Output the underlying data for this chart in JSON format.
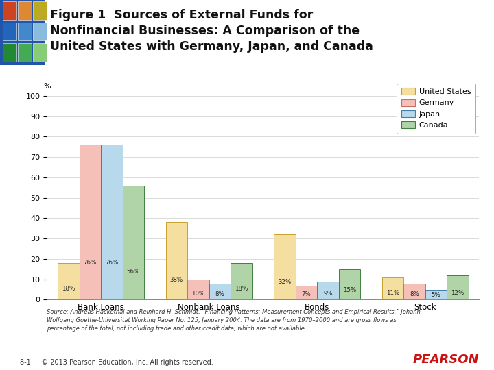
{
  "categories": [
    "Bank Loans",
    "Nonbank Loans",
    "Bonds",
    "Stock"
  ],
  "countries": [
    "United States",
    "Germany",
    "Japan",
    "Canada"
  ],
  "values": {
    "United States": [
      18,
      38,
      32,
      11
    ],
    "Germany": [
      76,
      10,
      7,
      8
    ],
    "Japan": [
      76,
      8,
      9,
      5
    ],
    "Canada": [
      56,
      18,
      15,
      12
    ]
  },
  "colors": {
    "United States": "#F5DFA0",
    "Germany": "#F5C0B8",
    "Japan": "#B8D8EC",
    "Canada": "#B0D4A8"
  },
  "edge_colors": {
    "United States": "#C8A030",
    "Germany": "#C87060",
    "Japan": "#4080A8",
    "Canada": "#408040"
  },
  "bar_width": 0.2,
  "ylim": [
    0,
    108
  ],
  "yticks": [
    0,
    10,
    20,
    30,
    40,
    50,
    60,
    70,
    80,
    90,
    100
  ],
  "ylabel": "%",
  "source_text": "Source: Andreas Hackethal and Reinhard H. Schmidt, “Financing Patterns: Measurement Concepts and Empirical Results,” Johann\nWolfgang Goethe-Universitat Working Paper No. 125, January 2004. The data are from 1970–2000 and are gross flows as\npercentage of the total, not including trade and other credit data, which are not available.",
  "footer_text": "8-1     © 2013 Pearson Education, Inc. All rights reserved.",
  "title_line1": "Figure 1  Sources of External Funds for",
  "title_line2": "Nonfinancial Businesses: A Comparison of the",
  "title_line3": "United States with Germany, Japan, and Canada"
}
